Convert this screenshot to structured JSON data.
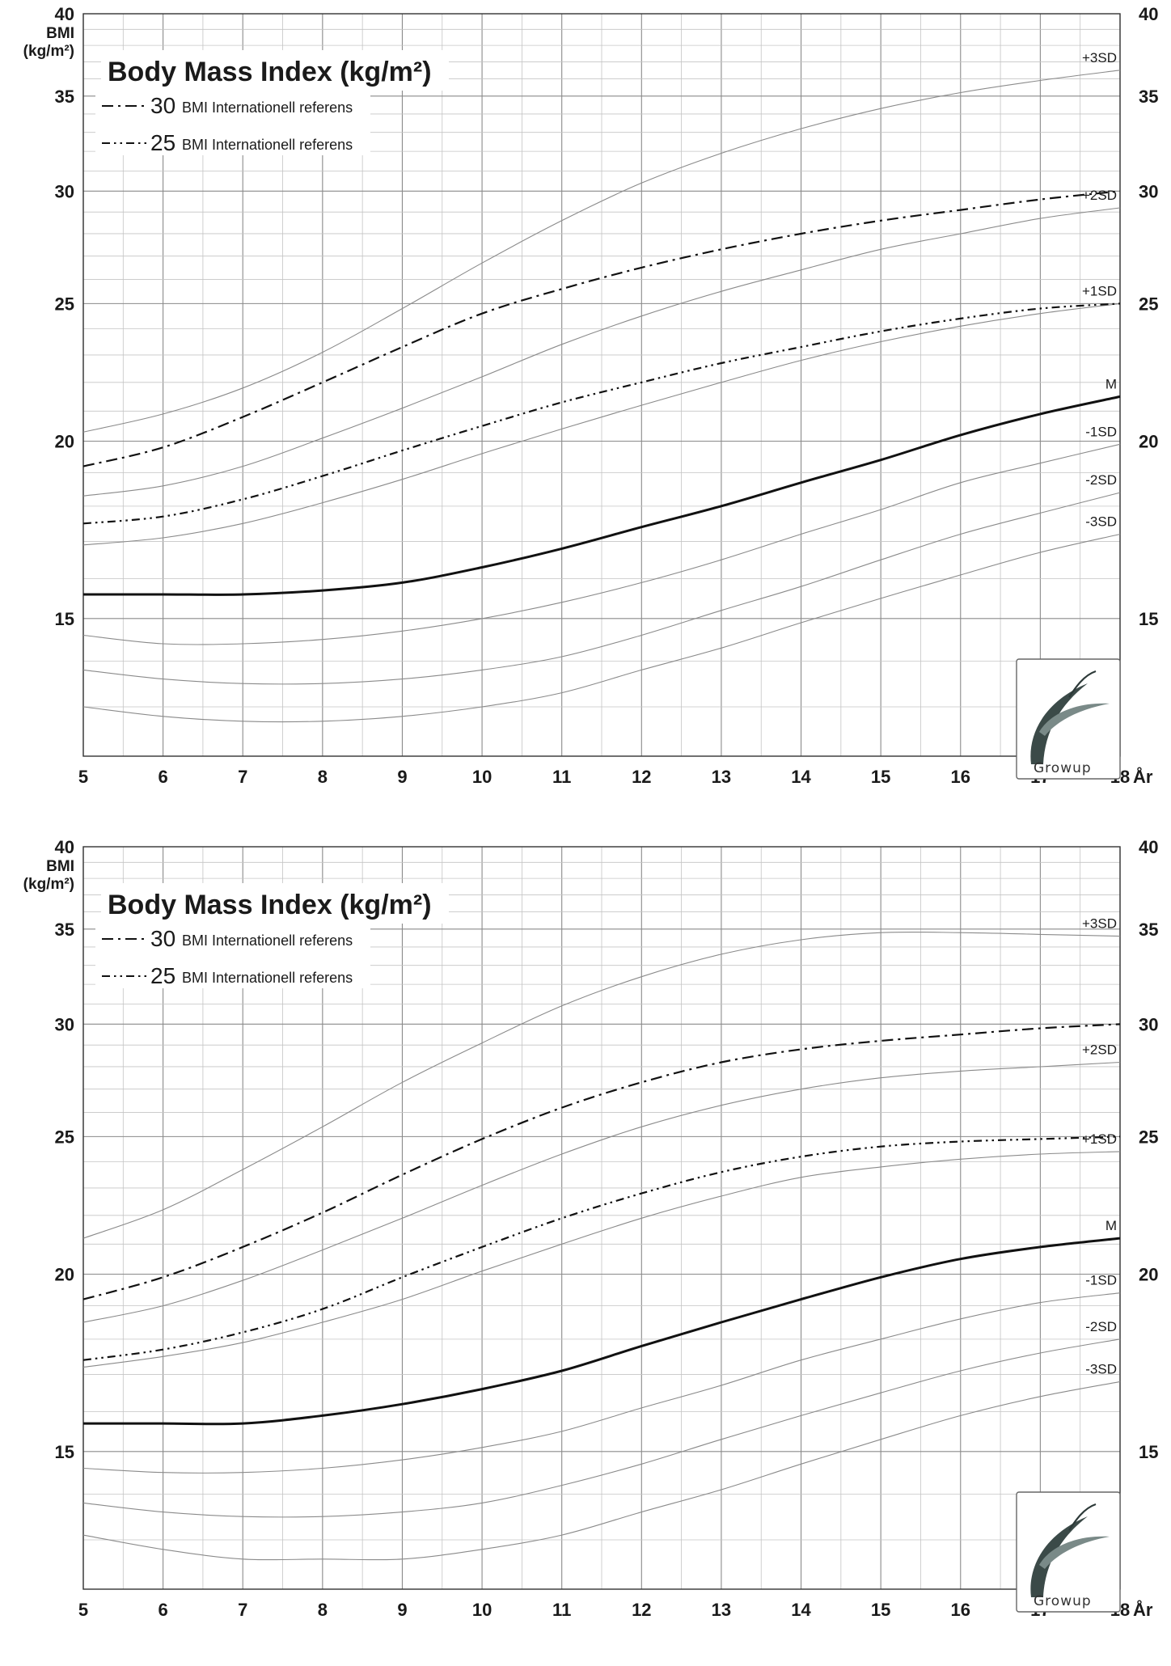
{
  "chart_data": [
    {
      "type": "line",
      "title": "Body Mass Index (kg/m²)",
      "ylabel_line1": "BMI",
      "ylabel_line2": "(kg/m²)",
      "xunit": "År",
      "ylim": [
        12,
        40
      ],
      "yscale": "log",
      "xlim": [
        5,
        18
      ],
      "x_ticks": [
        "5",
        "6",
        "7",
        "8",
        "9",
        "10",
        "11",
        "12",
        "13",
        "14",
        "15",
        "16",
        "17",
        "18"
      ],
      "y_ticks": [
        "15",
        "20",
        "25",
        "30",
        "35",
        "40"
      ],
      "grid": true,
      "legend": [
        {
          "num": "30",
          "text": "BMI Internationell referens",
          "style": "dash-dot"
        },
        {
          "num": "25",
          "text": "BMI Internationell referens",
          "style": "dash-dot-dot"
        }
      ],
      "logo_text": "Growup",
      "x": [
        5,
        6,
        7,
        8,
        9,
        10,
        11,
        12,
        13,
        14,
        15,
        16,
        17,
        18
      ],
      "series": [
        {
          "name": "+3SD",
          "style": "thin",
          "values": [
            20.3,
            20.9,
            21.8,
            23.1,
            24.8,
            26.7,
            28.6,
            30.4,
            31.9,
            33.2,
            34.3,
            35.2,
            35.9,
            36.5
          ]
        },
        {
          "name": "+2SD",
          "style": "thin",
          "values": [
            18.3,
            18.6,
            19.2,
            20.1,
            21.1,
            22.2,
            23.4,
            24.5,
            25.5,
            26.4,
            27.3,
            28.0,
            28.7,
            29.2
          ]
        },
        {
          "name": "+1SD",
          "style": "thin",
          "values": [
            16.9,
            17.1,
            17.5,
            18.1,
            18.8,
            19.6,
            20.4,
            21.2,
            22.0,
            22.8,
            23.5,
            24.1,
            24.6,
            25.0
          ]
        },
        {
          "name": "M",
          "style": "bold",
          "values": [
            15.6,
            15.6,
            15.6,
            15.7,
            15.9,
            16.3,
            16.8,
            17.4,
            18.0,
            18.7,
            19.4,
            20.2,
            20.9,
            21.5
          ]
        },
        {
          "name": "-1SD",
          "style": "thin",
          "values": [
            14.6,
            14.4,
            14.4,
            14.5,
            14.7,
            15.0,
            15.4,
            15.9,
            16.5,
            17.2,
            17.9,
            18.7,
            19.3,
            19.9
          ]
        },
        {
          "name": "-2SD",
          "style": "thin",
          "values": [
            13.8,
            13.6,
            13.5,
            13.5,
            13.6,
            13.8,
            14.1,
            14.6,
            15.2,
            15.8,
            16.5,
            17.2,
            17.8,
            18.4
          ]
        },
        {
          "name": "-3SD",
          "style": "thin",
          "values": [
            13.0,
            12.8,
            12.7,
            12.7,
            12.8,
            13.0,
            13.3,
            13.8,
            14.3,
            14.9,
            15.5,
            16.1,
            16.7,
            17.2
          ]
        },
        {
          "name": "30",
          "style": "dash-dot",
          "values": [
            19.2,
            19.8,
            20.8,
            22.0,
            23.3,
            24.6,
            25.6,
            26.5,
            27.3,
            28.0,
            28.6,
            29.1,
            29.6,
            30.0
          ]
        },
        {
          "name": "25",
          "style": "dash-dot-dot",
          "values": [
            17.5,
            17.7,
            18.2,
            18.9,
            19.7,
            20.5,
            21.3,
            22.0,
            22.7,
            23.3,
            23.9,
            24.4,
            24.8,
            25.0
          ]
        }
      ]
    },
    {
      "type": "line",
      "title": "Body Mass Index (kg/m²)",
      "ylabel_line1": "BMI",
      "ylabel_line2": "(kg/m²)",
      "xunit": "År",
      "ylim": [
        12,
        40
      ],
      "yscale": "log",
      "xlim": [
        5,
        18
      ],
      "x_ticks": [
        "5",
        "6",
        "7",
        "8",
        "9",
        "10",
        "11",
        "12",
        "13",
        "14",
        "15",
        "16",
        "17",
        "18"
      ],
      "y_ticks": [
        "15",
        "20",
        "25",
        "30",
        "35",
        "40"
      ],
      "grid": true,
      "legend": [
        {
          "num": "30",
          "text": "BMI Internationell referens",
          "style": "dash-dot"
        },
        {
          "num": "25",
          "text": "BMI Internationell referens",
          "style": "dash-dot-dot"
        }
      ],
      "logo_text": "Growup",
      "x": [
        5,
        6,
        7,
        8,
        9,
        10,
        11,
        12,
        13,
        14,
        15,
        16,
        17,
        18
      ],
      "series": [
        {
          "name": "+3SD",
          "style": "thin",
          "values": [
            21.2,
            22.2,
            23.7,
            25.4,
            27.3,
            29.1,
            30.9,
            32.4,
            33.6,
            34.4,
            34.8,
            34.8,
            34.7,
            34.6
          ]
        },
        {
          "name": "+2SD",
          "style": "thin",
          "values": [
            18.5,
            19.0,
            19.8,
            20.8,
            21.9,
            23.1,
            24.3,
            25.4,
            26.3,
            27.0,
            27.5,
            27.8,
            28.0,
            28.2
          ]
        },
        {
          "name": "+1SD",
          "style": "thin",
          "values": [
            17.2,
            17.5,
            17.9,
            18.5,
            19.2,
            20.1,
            21.0,
            21.9,
            22.7,
            23.4,
            23.8,
            24.1,
            24.3,
            24.4
          ]
        },
        {
          "name": "M",
          "style": "bold",
          "values": [
            15.7,
            15.7,
            15.7,
            15.9,
            16.2,
            16.6,
            17.1,
            17.8,
            18.5,
            19.2,
            19.9,
            20.5,
            20.9,
            21.2
          ]
        },
        {
          "name": "-1SD",
          "style": "thin",
          "values": [
            14.6,
            14.5,
            14.5,
            14.6,
            14.8,
            15.1,
            15.5,
            16.1,
            16.7,
            17.4,
            18.0,
            18.6,
            19.1,
            19.4
          ]
        },
        {
          "name": "-2SD",
          "style": "thin",
          "values": [
            13.8,
            13.6,
            13.5,
            13.5,
            13.6,
            13.8,
            14.2,
            14.7,
            15.3,
            15.9,
            16.5,
            17.1,
            17.6,
            18.0
          ]
        },
        {
          "name": "-3SD",
          "style": "thin",
          "values": [
            13.1,
            12.8,
            12.6,
            12.6,
            12.6,
            12.8,
            13.1,
            13.6,
            14.1,
            14.7,
            15.3,
            15.9,
            16.4,
            16.8
          ]
        },
        {
          "name": "30",
          "style": "dash-dot",
          "values": [
            19.2,
            19.9,
            20.9,
            22.1,
            23.5,
            24.9,
            26.2,
            27.3,
            28.2,
            28.8,
            29.2,
            29.5,
            29.8,
            30.0
          ]
        },
        {
          "name": "25",
          "style": "dash-dot-dot",
          "values": [
            17.4,
            17.7,
            18.2,
            18.9,
            19.9,
            20.9,
            21.9,
            22.8,
            23.6,
            24.2,
            24.6,
            24.8,
            24.9,
            25.0
          ]
        }
      ]
    }
  ]
}
